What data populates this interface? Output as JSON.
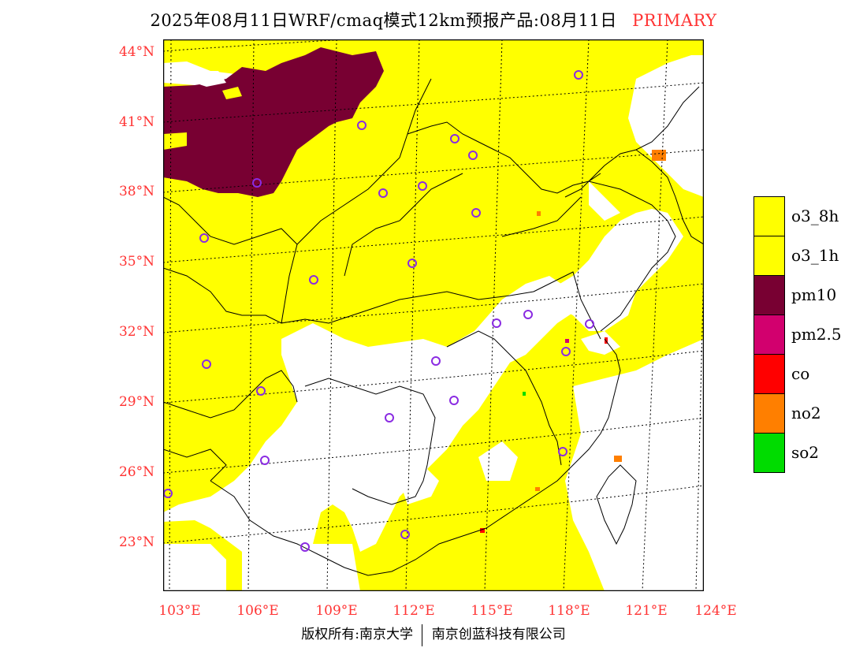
{
  "title": {
    "main": "2025年08月11日WRF/cmaq模式12km预报产品:08月11日",
    "tag": "PRIMARY"
  },
  "lat_labels": [
    "44°N",
    "41°N",
    "38°N",
    "35°N",
    "32°N",
    "29°N",
    "26°N",
    "23°N"
  ],
  "lon_labels": [
    "103°E",
    "106°E",
    "109°E",
    "112°E",
    "115°E",
    "118°E",
    "121°E",
    "124°E"
  ],
  "legend": {
    "items": [
      {
        "label": "o3_8h",
        "color": "#ffff00"
      },
      {
        "label": "o3_1h",
        "color": "#ffff00"
      },
      {
        "label": "pm10",
        "color": "#780032"
      },
      {
        "label": "pm2.5",
        "color": "#d2006e"
      },
      {
        "label": "co",
        "color": "#ff0000"
      },
      {
        "label": "no2",
        "color": "#ff7f00"
      },
      {
        "label": "so2",
        "color": "#00dc00"
      }
    ]
  },
  "footer": {
    "left": "版权所有:南京大学",
    "right": "南京创蓝科技有限公司"
  },
  "colors": {
    "accent": "#ff3333",
    "o3": "#ffff00",
    "pm10": "#780032",
    "no2": "#ff7f00",
    "station_marker": "#8a2be2"
  }
}
